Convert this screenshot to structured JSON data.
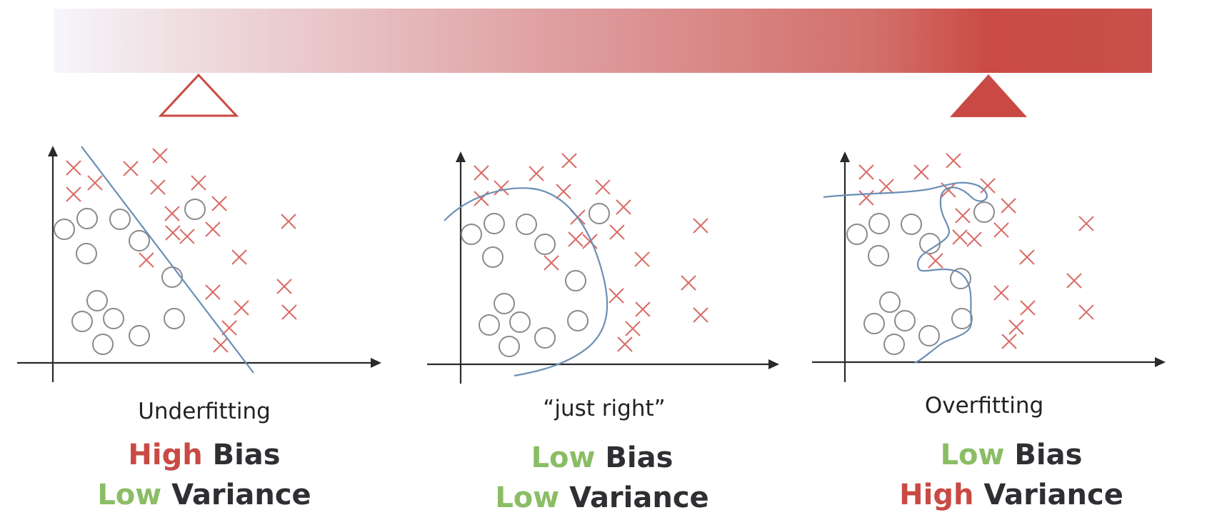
{
  "colors": {
    "accent_red": "#c94a44",
    "accent_green": "#8bbd65",
    "curve_blue": "#6b8fb5",
    "point_red": "#d96c66",
    "circle_gray": "#8a8a8a",
    "axis": "#2a2a2a",
    "text_dark": "#2f2f33"
  },
  "scale_bar": {
    "icon": "complexity-gradient-bar"
  },
  "markers": {
    "left": {
      "icon": "outline-triangle-icon",
      "style": "outline"
    },
    "right": {
      "icon": "filled-triangle-icon",
      "style": "filled"
    }
  },
  "panels": [
    {
      "id": "underfitting",
      "caption": "Underfitting",
      "bias_level": "High",
      "bias_word": "Bias",
      "variance_level": "Low",
      "variance_word": "Variance",
      "bias_color": "#c94a44",
      "variance_color": "#8bbd65",
      "boundary_icon": "linear-boundary"
    },
    {
      "id": "just-right",
      "caption": "“just right”",
      "bias_level": "Low",
      "bias_word": "Bias",
      "variance_level": "Low",
      "variance_word": "Variance",
      "bias_color": "#8bbd65",
      "variance_color": "#8bbd65",
      "boundary_icon": "smooth-curve-boundary"
    },
    {
      "id": "overfitting",
      "caption": "Overfitting",
      "bias_level": "Low",
      "bias_word": "Bias",
      "variance_level": "High",
      "variance_word": "Variance",
      "bias_color": "#8bbd65",
      "variance_color": "#c94a44",
      "boundary_icon": "wiggly-boundary"
    }
  ]
}
